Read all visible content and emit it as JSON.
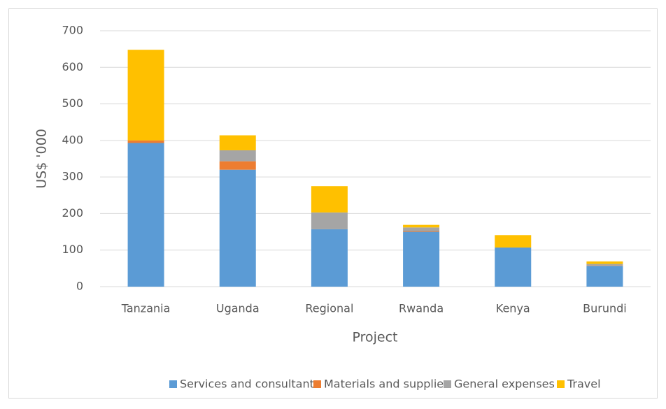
{
  "chart_data": {
    "type": "stacked_bar",
    "xlabel": "Project",
    "ylabel": "US$ '000",
    "categories": [
      "Tanzania",
      "Uganda",
      "Regional",
      "Rwanda",
      "Kenya",
      "Burundi"
    ],
    "series": [
      {
        "name": "Services and consultants",
        "color": "#5b9bd5",
        "values": [
          393,
          320,
          157,
          150,
          107,
          57
        ]
      },
      {
        "name": "Materials and supplies",
        "color": "#ed7d31",
        "values": [
          7,
          23,
          0,
          2,
          0,
          1
        ]
      },
      {
        "name": "General expenses",
        "color": "#a5a5a5",
        "values": [
          0,
          30,
          46,
          10,
          0,
          4
        ]
      },
      {
        "name": "Travel",
        "color": "#ffc000",
        "values": [
          248,
          41,
          72,
          7,
          34,
          7
        ]
      }
    ],
    "ylim": [
      0,
      700
    ],
    "yticks": [
      0,
      100,
      200,
      300,
      400,
      500,
      600,
      700
    ],
    "grid": true,
    "legend": "bottom"
  }
}
